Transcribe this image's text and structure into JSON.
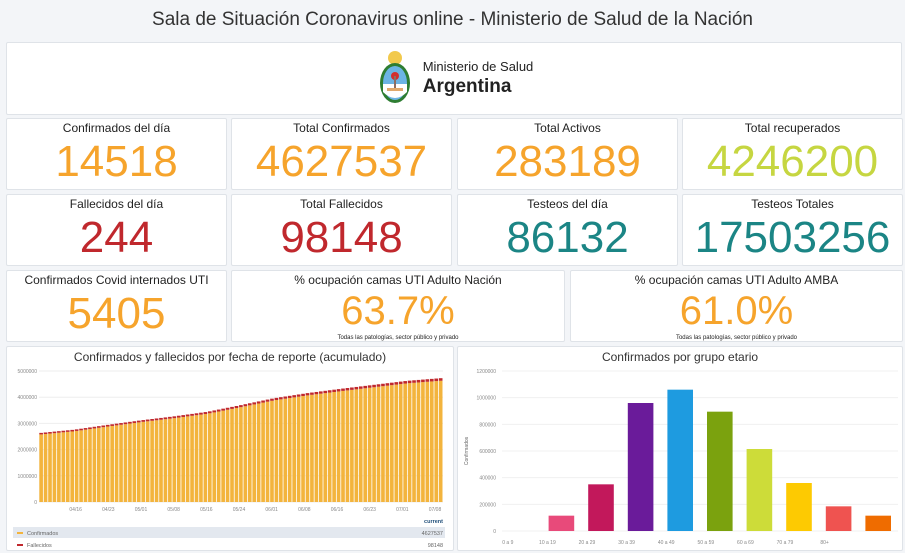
{
  "header": {
    "title": "Sala de Situación Coronavirus online - Ministerio de Salud de la Nación"
  },
  "logo": {
    "line1": "Ministerio de Salud",
    "line2": "Argentina"
  },
  "colors": {
    "orange": "#f6a42c",
    "green": "#c6d641",
    "red": "#c0282d",
    "teal": "#1b8585"
  },
  "stats": [
    {
      "label": "Confirmados del día",
      "value": "14518",
      "color": "orange"
    },
    {
      "label": "Total Confirmados",
      "value": "4627537",
      "color": "orange"
    },
    {
      "label": "Total Activos",
      "value": "283189",
      "color": "orange"
    },
    {
      "label": "Total recuperados",
      "value": "4246200",
      "color": "green"
    },
    {
      "label": "Fallecidos del día",
      "value": "244",
      "color": "red"
    },
    {
      "label": "Total Fallecidos",
      "value": "98148",
      "color": "red"
    },
    {
      "label": "Testeos del día",
      "value": "86132",
      "color": "teal"
    },
    {
      "label": "Testeos Totales",
      "value": "17503256",
      "color": "teal"
    },
    {
      "label": "Confirmados Covid internados UTI",
      "value": "5405",
      "color": "orange"
    },
    {
      "label": "% ocupación camas UTI Adulto Nación",
      "value": "63.7%",
      "color": "orange",
      "note": "Todas las patologías, sector público y privado"
    },
    {
      "label": "% ocupación camas UTI Adulto AMBA",
      "value": "61.0%",
      "color": "orange",
      "note": "Todas las patologías, sector público y privado"
    }
  ],
  "chart_data": [
    {
      "type": "bar",
      "stacked": true,
      "title": "Confirmados y fallecidos por fecha de reporte (acumulado)",
      "x": [
        "04/09",
        "04/16",
        "04/23",
        "05/01",
        "05/08",
        "05/16",
        "05/24",
        "06/01",
        "06/08",
        "06/16",
        "06/23",
        "07/01",
        "07/08"
      ],
      "xticks": [
        "04/16",
        "04/23",
        "05/01",
        "05/08",
        "05/16",
        "05/24",
        "06/01",
        "06/08",
        "06/16",
        "06/23",
        "07/01",
        "07/08"
      ],
      "yticks": [
        "0",
        "1000000",
        "2000000",
        "3000000",
        "4000000",
        "5000000"
      ],
      "ylim": [
        0,
        5000000
      ],
      "series": [
        {
          "name": "Confirmados",
          "color": "#f3b43d",
          "current": "4627537",
          "values": [
            2580000,
            2700000,
            2880000,
            3050000,
            3200000,
            3370000,
            3620000,
            3880000,
            4070000,
            4230000,
            4380000,
            4530000,
            4627537
          ]
        },
        {
          "name": "Fallecidos",
          "color": "#c0282d",
          "current": "98148",
          "values": [
            58000,
            61000,
            64000,
            67000,
            70000,
            74000,
            78000,
            82000,
            86000,
            90000,
            93000,
            96000,
            98148
          ]
        }
      ],
      "legend_header": "current"
    },
    {
      "type": "bar",
      "title": "Confirmados por grupo etario",
      "ylabel": "Confirmados",
      "categories": [
        "0 a 9",
        "10 a 19",
        "20 a 29",
        "30 a 39",
        "40 a 49",
        "50 a 59",
        "60 a 69",
        "70 a 79",
        "80+",
        ""
      ],
      "values": [
        0,
        115000,
        350000,
        960000,
        1060000,
        895000,
        615000,
        360000,
        185000,
        115000
      ],
      "colors": [
        "#e84a7a",
        "#e84a7a",
        "#c2185b",
        "#6a1b9a",
        "#1e9be0",
        "#7ba20e",
        "#cddc39",
        "#fdca02",
        "#ef5350",
        "#ef6c00"
      ],
      "yticks": [
        "0",
        "200000",
        "400000",
        "600000",
        "800000",
        "1000000",
        "1200000"
      ],
      "ylim": [
        0,
        1200000
      ]
    }
  ]
}
